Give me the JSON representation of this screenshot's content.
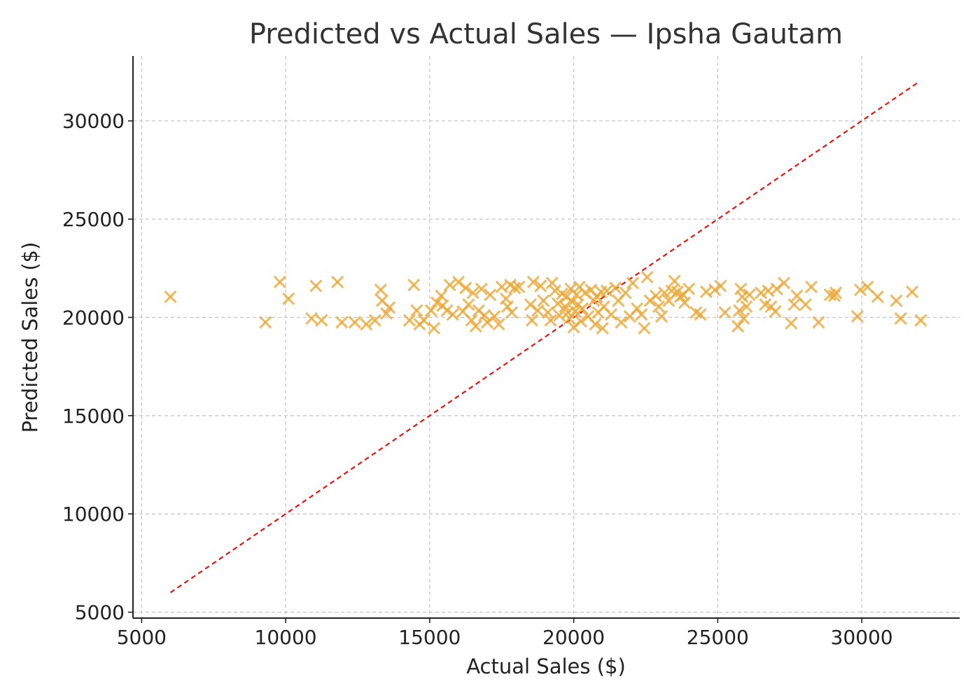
{
  "chart_data": {
    "type": "scatter",
    "title": "Predicted vs Actual Sales — Ipsha Gautam",
    "xlabel": "Actual Sales ($)",
    "ylabel": "Predicted Sales ($)",
    "xlim": [
      4700,
      33400
    ],
    "ylim": [
      4700,
      33300
    ],
    "xticks": [
      5000,
      10000,
      15000,
      20000,
      25000,
      30000
    ],
    "yticks": [
      5000,
      10000,
      15000,
      20000,
      25000,
      30000
    ],
    "grid": true,
    "marker": "x",
    "marker_color": "#e8a93a",
    "reference_line": {
      "style": "dashed",
      "color": "#ee1111",
      "from": [
        6000,
        6000
      ],
      "to": [
        32000,
        32000
      ]
    },
    "points": [
      [
        6000,
        21050
      ],
      [
        9300,
        19750
      ],
      [
        9800,
        21800
      ],
      [
        10100,
        20950
      ],
      [
        10900,
        19950
      ],
      [
        11050,
        21600
      ],
      [
        11250,
        19850
      ],
      [
        11800,
        21800
      ],
      [
        11950,
        19750
      ],
      [
        12400,
        19750
      ],
      [
        12800,
        19650
      ],
      [
        13100,
        19850
      ],
      [
        13300,
        21400
      ],
      [
        13350,
        20850
      ],
      [
        13500,
        20200
      ],
      [
        13600,
        20500
      ],
      [
        14300,
        19850
      ],
      [
        14450,
        21650
      ],
      [
        14550,
        20350
      ],
      [
        14650,
        19650
      ],
      [
        14800,
        19850
      ],
      [
        15050,
        20350
      ],
      [
        15150,
        19450
      ],
      [
        15250,
        20750
      ],
      [
        15400,
        21100
      ],
      [
        15450,
        20600
      ],
      [
        15600,
        20350
      ],
      [
        15700,
        21650
      ],
      [
        15800,
        20150
      ],
      [
        16000,
        21800
      ],
      [
        16150,
        20300
      ],
      [
        16250,
        21500
      ],
      [
        16350,
        20650
      ],
      [
        16450,
        19850
      ],
      [
        16500,
        21250
      ],
      [
        16600,
        19550
      ],
      [
        16700,
        20350
      ],
      [
        16800,
        21450
      ],
      [
        16900,
        20100
      ],
      [
        17000,
        19750
      ],
      [
        17100,
        21150
      ],
      [
        17250,
        20050
      ],
      [
        17400,
        19650
      ],
      [
        17500,
        21550
      ],
      [
        17650,
        20950
      ],
      [
        17700,
        20550
      ],
      [
        17800,
        21650
      ],
      [
        17850,
        20250
      ],
      [
        17950,
        21500
      ],
      [
        18100,
        21550
      ],
      [
        18500,
        20650
      ],
      [
        18550,
        19850
      ],
      [
        18600,
        21800
      ],
      [
        18750,
        20350
      ],
      [
        18850,
        21600
      ],
      [
        18950,
        20850
      ],
      [
        19100,
        20250
      ],
      [
        19200,
        19850
      ],
      [
        19250,
        21750
      ],
      [
        19350,
        21350
      ],
      [
        19450,
        20700
      ],
      [
        19500,
        20100
      ],
      [
        19600,
        21200
      ],
      [
        19700,
        20550
      ],
      [
        19750,
        21050
      ],
      [
        19800,
        20250
      ],
      [
        19850,
        19950
      ],
      [
        19900,
        21450
      ],
      [
        19950,
        20800
      ],
      [
        20000,
        19500
      ],
      [
        20050,
        20300
      ],
      [
        20100,
        21150
      ],
      [
        20150,
        20650
      ],
      [
        20200,
        21550
      ],
      [
        20250,
        19800
      ],
      [
        20300,
        20450
      ],
      [
        20400,
        21250
      ],
      [
        20500,
        20050
      ],
      [
        20600,
        21400
      ],
      [
        20700,
        20850
      ],
      [
        20750,
        19650
      ],
      [
        20800,
        21050
      ],
      [
        20850,
        20250
      ],
      [
        20950,
        21300
      ],
      [
        21000,
        19450
      ],
      [
        21050,
        20550
      ],
      [
        21150,
        21350
      ],
      [
        21300,
        20150
      ],
      [
        21450,
        21500
      ],
      [
        21550,
        20850
      ],
      [
        21650,
        19750
      ],
      [
        21800,
        21250
      ],
      [
        21950,
        20050
      ],
      [
        22050,
        21750
      ],
      [
        22200,
        20450
      ],
      [
        22350,
        20150
      ],
      [
        22450,
        19450
      ],
      [
        22550,
        22050
      ],
      [
        22650,
        20850
      ],
      [
        22850,
        21100
      ],
      [
        22950,
        20550
      ],
      [
        23050,
        20050
      ],
      [
        23150,
        21250
      ],
      [
        23300,
        20850
      ],
      [
        23400,
        21350
      ],
      [
        23500,
        21850
      ],
      [
        23600,
        21300
      ],
      [
        23700,
        21050
      ],
      [
        23800,
        21150
      ],
      [
        23850,
        20750
      ],
      [
        24000,
        21450
      ],
      [
        24250,
        20250
      ],
      [
        24400,
        20150
      ],
      [
        24600,
        21300
      ],
      [
        24900,
        21400
      ],
      [
        25100,
        21600
      ],
      [
        25250,
        20250
      ],
      [
        25700,
        19550
      ],
      [
        25750,
        20350
      ],
      [
        25800,
        21450
      ],
      [
        25850,
        21050
      ],
      [
        25900,
        19950
      ],
      [
        26000,
        20550
      ],
      [
        26100,
        21150
      ],
      [
        26500,
        21250
      ],
      [
        26650,
        20650
      ],
      [
        26750,
        21350
      ],
      [
        26850,
        20550
      ],
      [
        27000,
        20300
      ],
      [
        27050,
        21450
      ],
      [
        27300,
        21750
      ],
      [
        27550,
        19700
      ],
      [
        27650,
        20650
      ],
      [
        27750,
        21100
      ],
      [
        28050,
        20650
      ],
      [
        28250,
        21550
      ],
      [
        28500,
        19750
      ],
      [
        28900,
        21150
      ],
      [
        29050,
        21100
      ],
      [
        29100,
        21250
      ],
      [
        29850,
        20050
      ],
      [
        29950,
        21400
      ],
      [
        30200,
        21550
      ],
      [
        30550,
        21050
      ],
      [
        31200,
        20850
      ],
      [
        31350,
        19950
      ],
      [
        31750,
        21300
      ],
      [
        32050,
        19850
      ]
    ]
  }
}
